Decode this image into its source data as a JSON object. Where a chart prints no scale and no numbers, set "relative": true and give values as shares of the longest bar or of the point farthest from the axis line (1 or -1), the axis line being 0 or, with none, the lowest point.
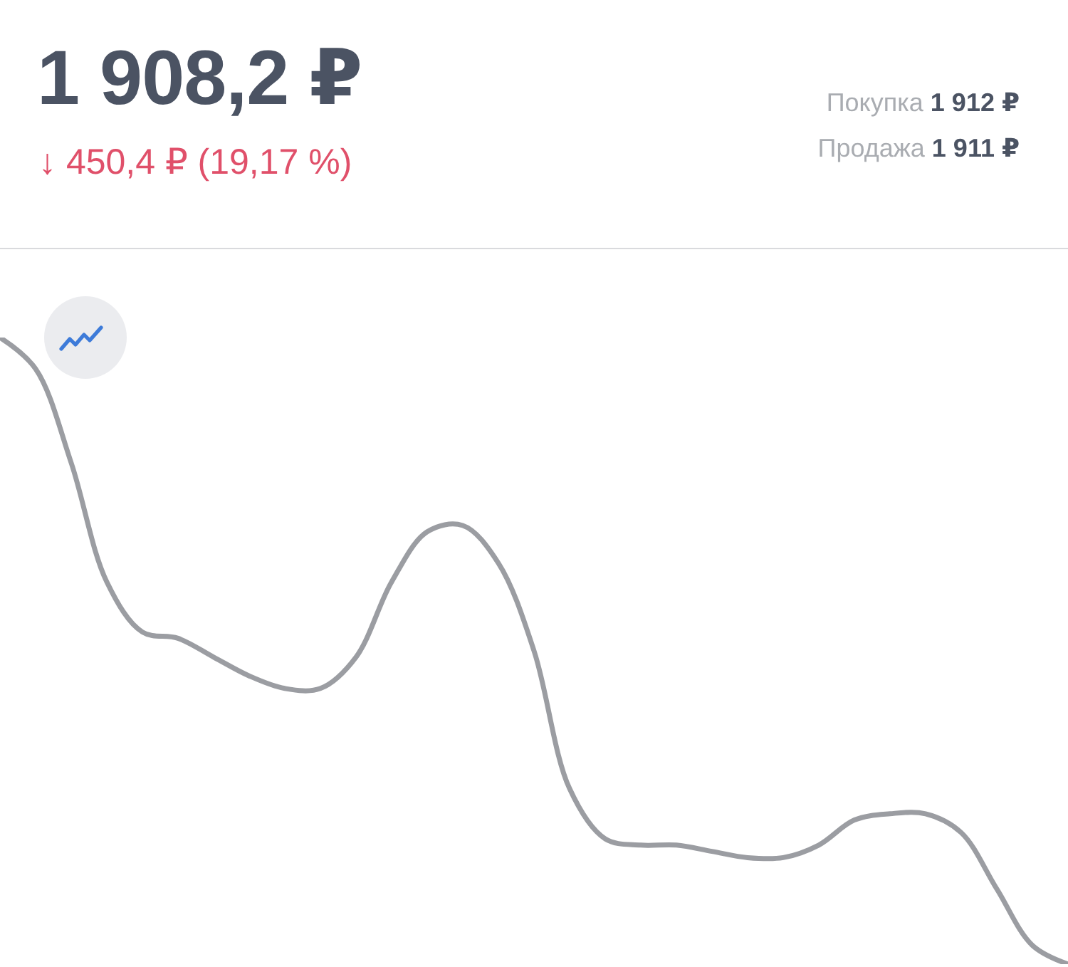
{
  "chart_data": {
    "type": "line",
    "title": "1 908,2 ₽",
    "subtitle": "↓ 450,4 ₽ (19,17 %)",
    "annotations": [
      "Покупка 1 912 ₽",
      "Продажа 1 911 ₽"
    ],
    "relative": true,
    "categories": [
      null,
      null,
      null,
      null,
      null,
      null,
      null,
      null,
      null,
      null,
      null,
      null,
      null,
      null,
      null,
      null,
      null,
      null,
      null,
      null,
      null,
      null,
      null,
      null,
      null,
      null,
      null,
      null,
      null,
      null,
      null
    ],
    "values": [
      1.0,
      0.95,
      0.8,
      0.61,
      0.53,
      0.52,
      0.49,
      0.46,
      0.44,
      0.44,
      0.49,
      0.61,
      0.69,
      0.7,
      0.64,
      0.5,
      0.28,
      0.2,
      0.19,
      0.19,
      0.18,
      0.17,
      0.17,
      0.19,
      0.23,
      0.24,
      0.24,
      0.21,
      0.12,
      0.03,
      0.0
    ],
    "color": "#9b9da2"
  }
}
